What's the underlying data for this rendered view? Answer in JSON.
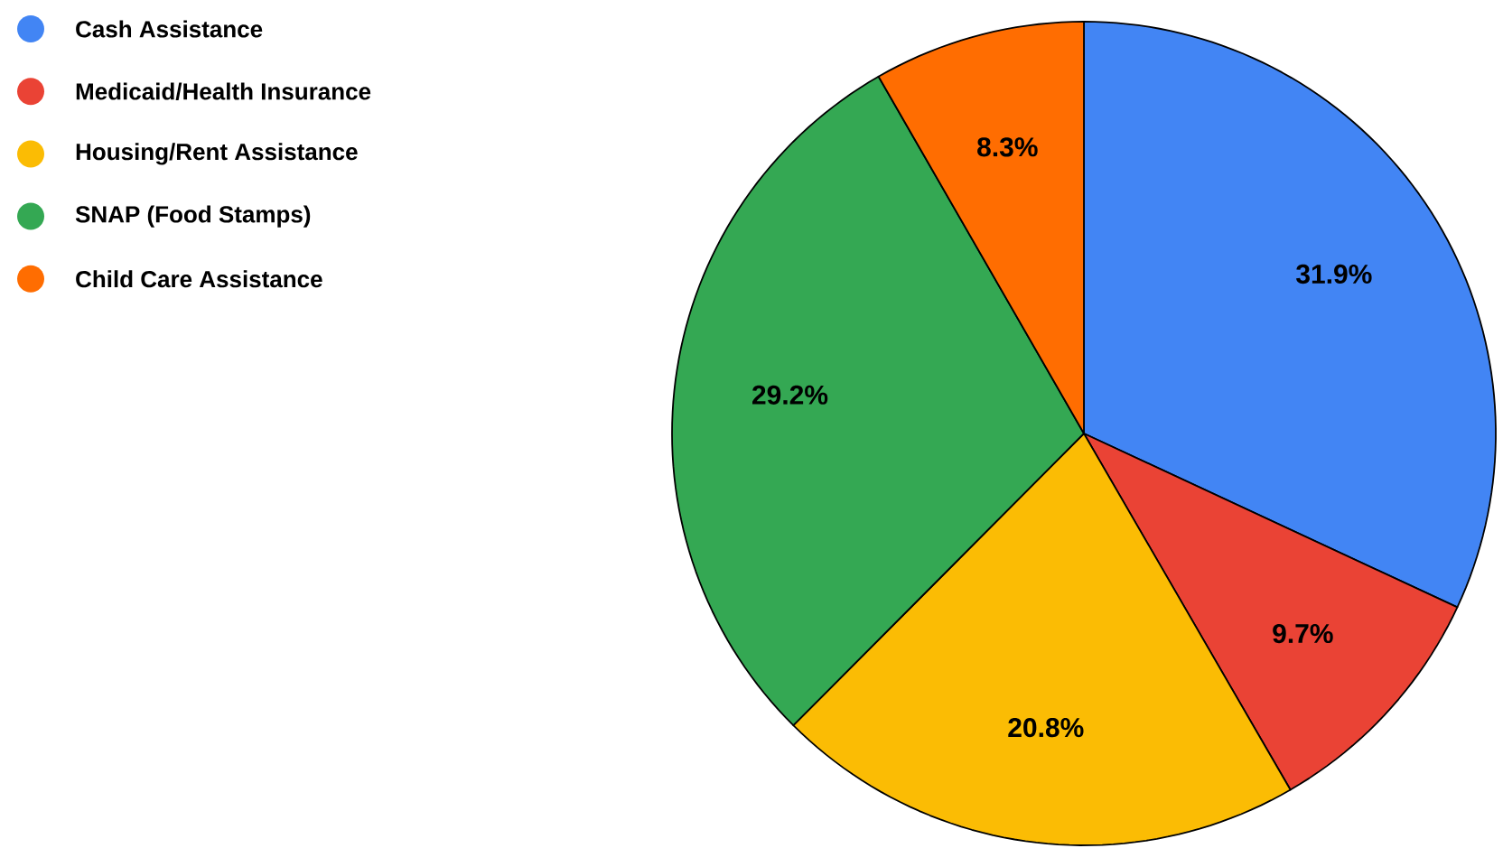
{
  "chart_data": {
    "type": "pie",
    "categories": [
      "Cash Assistance",
      "Medicaid/Health Insurance",
      "Housing/Rent Assistance",
      "SNAP (Food Stamps)",
      "Child Care Assistance"
    ],
    "values": [
      31.9,
      9.7,
      20.8,
      29.2,
      8.3
    ],
    "colors": [
      "#4285f4",
      "#ea4335",
      "#fbbc04",
      "#34a853",
      "#ff6d01"
    ],
    "value_labels": [
      "31.9%",
      "9.7%",
      "20.8%",
      "29.2%",
      "8.3%"
    ],
    "legend": "top left"
  }
}
